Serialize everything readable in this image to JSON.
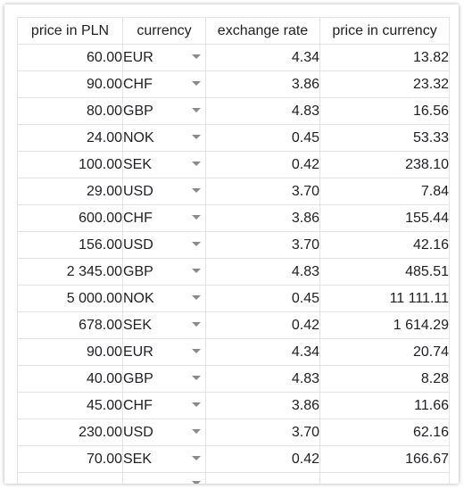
{
  "headers": [
    "price in PLN",
    "currency",
    "exchange rate",
    "price in currency"
  ],
  "rows": [
    {
      "pln": "60.00",
      "currency": "EUR",
      "rate": "4.34",
      "converted": "13.82"
    },
    {
      "pln": "90.00",
      "currency": "CHF",
      "rate": "3.86",
      "converted": "23.32"
    },
    {
      "pln": "80.00",
      "currency": "GBP",
      "rate": "4.83",
      "converted": "16.56"
    },
    {
      "pln": "24.00",
      "currency": "NOK",
      "rate": "0.45",
      "converted": "53.33"
    },
    {
      "pln": "100.00",
      "currency": "SEK",
      "rate": "0.42",
      "converted": "238.10"
    },
    {
      "pln": "29.00",
      "currency": "USD",
      "rate": "3.70",
      "converted": "7.84"
    },
    {
      "pln": "600.00",
      "currency": "CHF",
      "rate": "3.86",
      "converted": "155.44"
    },
    {
      "pln": "156.00",
      "currency": "USD",
      "rate": "3.70",
      "converted": "42.16"
    },
    {
      "pln": "2 345.00",
      "currency": "GBP",
      "rate": "4.83",
      "converted": "485.51"
    },
    {
      "pln": "5 000.00",
      "currency": "NOK",
      "rate": "0.45",
      "converted": "11 111.11"
    },
    {
      "pln": "678.00",
      "currency": "SEK",
      "rate": "0.42",
      "converted": "1 614.29"
    },
    {
      "pln": "90.00",
      "currency": "EUR",
      "rate": "4.34",
      "converted": "20.74"
    },
    {
      "pln": "40.00",
      "currency": "GBP",
      "rate": "4.83",
      "converted": "8.28"
    },
    {
      "pln": "45.00",
      "currency": "CHF",
      "rate": "3.86",
      "converted": "11.66"
    },
    {
      "pln": "230.00",
      "currency": "USD",
      "rate": "3.70",
      "converted": "62.16"
    },
    {
      "pln": "70.00",
      "currency": "SEK",
      "rate": "0.42",
      "converted": "166.67"
    },
    {
      "pln": "",
      "currency": "",
      "rate": "",
      "converted": ""
    }
  ],
  "icons": {
    "dropdown": "triangle-down-icon"
  },
  "colors": {
    "gridline": "#e2e3e3",
    "text": "#202124",
    "dropdown_arrow": "#8a8a8a"
  }
}
